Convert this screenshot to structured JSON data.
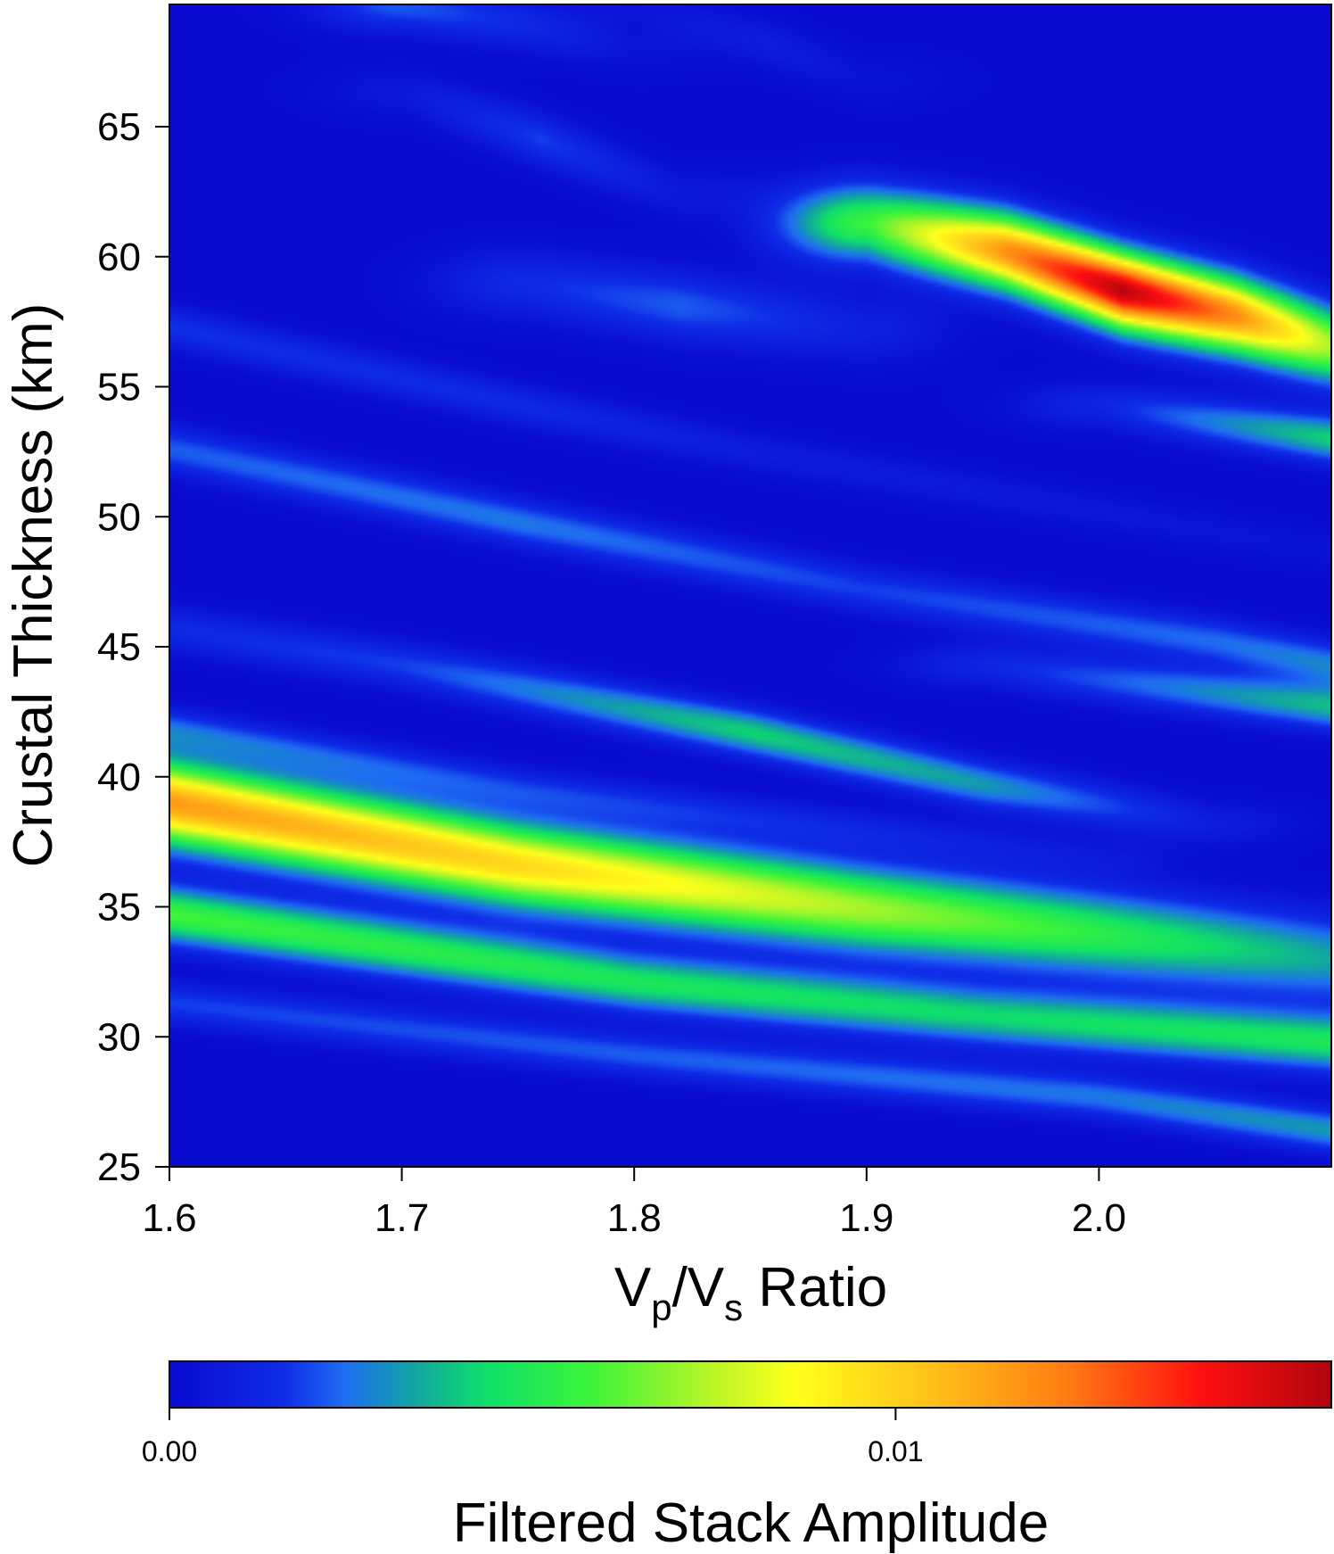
{
  "chart_data": {
    "type": "heatmap",
    "title": "",
    "xlabel": {
      "main": "V",
      "sub1": "p",
      "slash": "/V",
      "sub2": "s",
      "rest": " Ratio"
    },
    "ylabel": "Crustal Thickness (km)",
    "xlim": [
      1.6,
      2.1
    ],
    "ylim": [
      25,
      69.7
    ],
    "x_ticks": [
      1.6,
      1.7,
      1.8,
      1.9,
      2.0
    ],
    "x_tick_labels": [
      "1.6",
      "1.7",
      "1.8",
      "1.9",
      "2.0"
    ],
    "y_ticks": [
      25,
      30,
      35,
      40,
      45,
      50,
      55,
      60,
      65
    ],
    "y_tick_labels": [
      "25",
      "30",
      "35",
      "40",
      "45",
      "50",
      "55",
      "60",
      "65"
    ],
    "value_range": [
      0,
      0.016
    ],
    "ridges": [
      {
        "x": [
          1.6,
          1.75,
          1.9,
          2.1
        ],
        "y": [
          39.0,
          36.6,
          34.9,
          33.0
        ],
        "amp": [
          0.0115,
          0.0098,
          0.0072,
          0.0034
        ],
        "width_km": 1.1
      },
      {
        "x": [
          1.6,
          1.8,
          1.95,
          2.1
        ],
        "y": [
          34.7,
          32.1,
          30.8,
          29.8
        ],
        "amp": [
          0.0058,
          0.0048,
          0.0043,
          0.0048
        ],
        "width_km": 0.75
      },
      {
        "x": [
          1.6,
          1.8,
          2.0,
          2.1
        ],
        "y": [
          31.3,
          29.3,
          27.7,
          26.4
        ],
        "amp": [
          0.0018,
          0.0022,
          0.0026,
          0.0032
        ],
        "width_km": 0.55
      },
      {
        "x": [
          1.6,
          1.75,
          1.9,
          2.0
        ],
        "y": [
          41.8,
          39.5,
          37.9,
          36.9
        ],
        "amp": [
          0.0024,
          0.0018,
          0.0012,
          0.0006
        ],
        "width_km": 0.55
      },
      {
        "x": [
          1.6,
          1.7,
          1.85,
          1.95,
          2.05
        ],
        "y": [
          45.7,
          44.3,
          41.7,
          39.7,
          38.2
        ],
        "amp": [
          0.0014,
          0.0018,
          0.0042,
          0.0032,
          0.0008
        ],
        "width_km": 0.6
      },
      {
        "x": [
          1.6,
          1.75,
          1.9,
          2.05,
          2.1
        ],
        "y": [
          52.6,
          49.8,
          47.2,
          45.2,
          44.3
        ],
        "amp": [
          0.0022,
          0.0026,
          0.0018,
          0.0024,
          0.0028
        ],
        "width_km": 0.6
      },
      {
        "x": [
          1.6,
          1.75,
          1.85,
          2.1
        ],
        "y": [
          57.3,
          54.3,
          52.5,
          48.7
        ],
        "amp": [
          0.0016,
          0.0014,
          0.0008,
          0.0004
        ],
        "width_km": 0.55
      },
      {
        "x": [
          1.95,
          2.1
        ],
        "y": [
          44.3,
          42.7
        ],
        "amp": [
          0.0012,
          0.0038
        ],
        "width_km": 0.6
      },
      {
        "x": [
          2.0,
          2.1
        ],
        "y": [
          54.3,
          53.0
        ],
        "amp": [
          0.0012,
          0.0042
        ],
        "width_km": 0.6
      },
      {
        "x": [
          1.9,
          1.96,
          2.01,
          2.06,
          2.1
        ],
        "y": [
          61.3,
          60.2,
          58.7,
          57.7,
          56.6
        ],
        "amp": [
          0.0056,
          0.0118,
          0.0158,
          0.0118,
          0.0072
        ],
        "width_km": 1.0
      },
      {
        "x": [
          1.75,
          1.82,
          1.9
        ],
        "y": [
          59.0,
          58.1,
          57.2
        ],
        "amp": [
          0.0014,
          0.0022,
          0.001
        ],
        "width_km": 0.9
      },
      {
        "x": [
          1.7,
          1.76,
          1.82
        ],
        "y": [
          66.4,
          64.5,
          62.4
        ],
        "amp": [
          0.0006,
          0.0018,
          0.0006
        ],
        "width_km": 0.7
      },
      {
        "x": [
          1.8,
          1.86,
          1.9
        ],
        "y": [
          69.7,
          68.1,
          66.8
        ],
        "amp": [
          0.0004,
          0.0008,
          0.0004
        ],
        "width_km": 0.7
      },
      {
        "x": [
          1.7,
          1.75,
          1.8
        ],
        "y": [
          69.7,
          69.0,
          68.0
        ],
        "amp": [
          0.0022,
          0.0014,
          0.0004
        ],
        "width_km": 0.7
      }
    ],
    "colorbar": {
      "label": "Filtered Stack Amplitude",
      "tick_values": [
        0.0,
        0.01
      ],
      "tick_labels": [
        "0.00",
        "0.01"
      ],
      "stops": [
        {
          "v": 0.0,
          "color": "#0a0ad2"
        },
        {
          "v": 0.0016,
          "color": "#0f2de8"
        },
        {
          "v": 0.0024,
          "color": "#1f6cf2"
        },
        {
          "v": 0.0034,
          "color": "#11a7a0"
        },
        {
          "v": 0.0044,
          "color": "#10e068"
        },
        {
          "v": 0.0058,
          "color": "#3cf43a"
        },
        {
          "v": 0.0074,
          "color": "#b4f528"
        },
        {
          "v": 0.0086,
          "color": "#ffff1a"
        },
        {
          "v": 0.0104,
          "color": "#ffc41a"
        },
        {
          "v": 0.0124,
          "color": "#ff7a12"
        },
        {
          "v": 0.0142,
          "color": "#ff1010"
        },
        {
          "v": 0.016,
          "color": "#b0040c"
        }
      ]
    }
  }
}
